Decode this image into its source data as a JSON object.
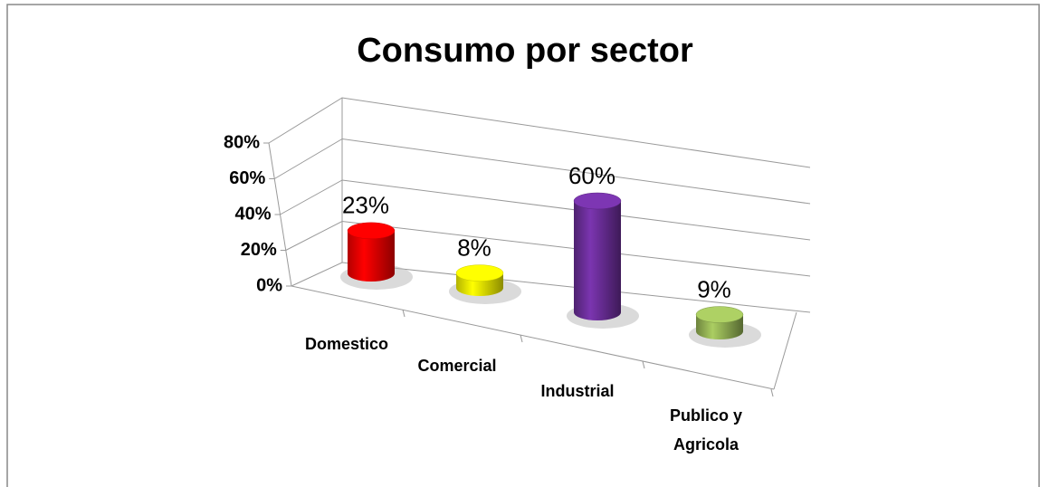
{
  "chart_data": {
    "type": "bar",
    "title": "Consumo por sector",
    "categories": [
      "Domestico",
      "Comercial",
      "Industrial",
      "Publico y Agricola"
    ],
    "values": [
      23,
      8,
      60,
      9
    ],
    "value_labels": [
      "23%",
      "8%",
      "60%",
      "9%"
    ],
    "colors": [
      "#ff0000",
      "#ffff00",
      "#7030a0",
      "#9bbb59"
    ],
    "ylim": [
      0,
      80
    ],
    "yticks": [
      {
        "value": 0,
        "label": "0%"
      },
      {
        "value": 20,
        "label": "20%"
      },
      {
        "value": 40,
        "label": "40%"
      },
      {
        "value": 60,
        "label": "60%"
      },
      {
        "value": 80,
        "label": "80%"
      }
    ],
    "grid": true
  }
}
